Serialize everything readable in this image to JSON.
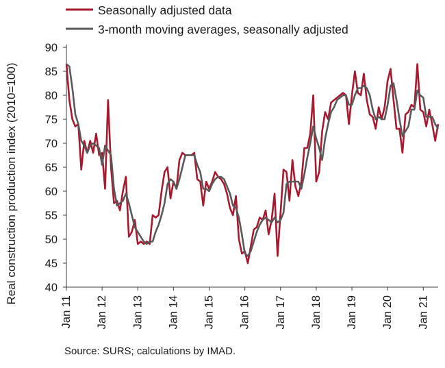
{
  "chart_data": {
    "type": "line",
    "ylabel": "Real construction production index (2010=100)",
    "ylim": [
      40,
      90
    ],
    "yticks": [
      40,
      45,
      50,
      55,
      60,
      65,
      70,
      75,
      80,
      85,
      90
    ],
    "x_start": "Jan 11",
    "x_end": "Jun 21",
    "tick_labels": [
      "Jan 11",
      "Jan 12",
      "Jan 13",
      "Jan 14",
      "Jan 15",
      "Jan 16",
      "Jan 17",
      "Jan 18",
      "Jan 19",
      "Jan 20",
      "Jan 21"
    ],
    "grid": false,
    "legend_position": "top-left",
    "series": [
      {
        "name": "Seasonally adjusted data",
        "color": "#a6192e",
        "values": [
          86.5,
          79.0,
          75.0,
          73.5,
          74.0,
          64.5,
          70.5,
          68.0,
          70.5,
          68.0,
          72.0,
          67.5,
          68.0,
          60.5,
          79.0,
          65.0,
          57.5,
          58.0,
          56.0,
          60.0,
          63.0,
          50.5,
          51.5,
          54.0,
          49.0,
          49.5,
          49.0,
          49.5,
          49.0,
          55.0,
          54.5,
          55.0,
          60.0,
          64.0,
          65.0,
          58.5,
          62.0,
          60.5,
          66.5,
          68.0,
          67.5,
          67.5,
          67.5,
          68.0,
          62.5,
          62.0,
          57.0,
          62.0,
          60.5,
          62.0,
          64.0,
          63.0,
          62.5,
          61.5,
          59.5,
          56.5,
          55.0,
          59.0,
          50.0,
          47.0,
          47.5,
          45.0,
          48.5,
          52.0,
          52.5,
          54.5,
          54.0,
          56.0,
          51.0,
          54.0,
          59.5,
          46.5,
          55.5,
          64.5,
          64.0,
          58.0,
          66.5,
          61.0,
          59.0,
          62.0,
          69.0,
          69.0,
          72.0,
          80.0,
          62.0,
          64.0,
          72.5,
          76.5,
          75.0,
          78.5,
          79.0,
          79.5,
          80.0,
          80.5,
          80.0,
          74.0,
          80.0,
          85.0,
          80.5,
          80.0,
          84.5,
          79.0,
          76.0,
          75.5,
          73.0,
          77.5,
          75.0,
          77.5,
          83.0,
          85.5,
          79.0,
          73.0,
          73.0,
          68.0,
          76.0,
          76.5,
          78.0,
          77.5,
          86.5,
          77.0,
          76.5,
          73.5,
          77.0,
          74.0,
          70.5,
          74.0
        ]
      },
      {
        "name": "3-month moving averages, seasonally adjusted",
        "color": "#595959",
        "values": [
          86.5,
          86.0,
          81.5,
          76.0,
          74.0,
          70.5,
          69.5,
          68.0,
          69.5,
          70.0,
          69.5,
          69.0,
          65.5,
          69.5,
          68.5,
          67.5,
          60.5,
          57.0,
          57.5,
          58.0,
          59.5,
          57.5,
          55.0,
          52.5,
          51.5,
          50.5,
          49.5,
          49.0,
          49.5,
          49.5,
          51.5,
          53.0,
          55.0,
          57.5,
          61.5,
          62.5,
          62.0,
          60.5,
          62.5,
          65.0,
          67.5,
          67.5,
          67.5,
          67.5,
          65.5,
          64.0,
          60.5,
          60.5,
          60.0,
          61.5,
          62.5,
          63.0,
          63.0,
          62.5,
          61.0,
          59.5,
          57.0,
          56.5,
          54.5,
          51.0,
          47.0,
          46.5,
          47.5,
          49.5,
          51.5,
          53.0,
          54.0,
          54.5,
          54.0,
          53.5,
          54.5,
          53.5,
          54.0,
          55.5,
          61.5,
          62.0,
          62.0,
          62.0,
          62.0,
          60.5,
          63.5,
          67.0,
          70.0,
          73.5,
          71.0,
          69.0,
          66.5,
          71.0,
          74.0,
          76.5,
          77.5,
          79.0,
          79.5,
          80.0,
          80.0,
          78.0,
          78.0,
          80.0,
          81.5,
          81.5,
          82.0,
          81.5,
          80.0,
          77.0,
          75.0,
          75.5,
          75.0,
          75.0,
          78.0,
          82.0,
          82.5,
          79.0,
          75.0,
          71.5,
          72.5,
          73.5,
          77.0,
          77.0,
          81.0,
          80.0,
          79.5,
          75.5,
          75.5,
          75.5,
          74.0,
          73.0
        ]
      }
    ]
  },
  "source_text": "Source: SURS; calculations by IMAD."
}
